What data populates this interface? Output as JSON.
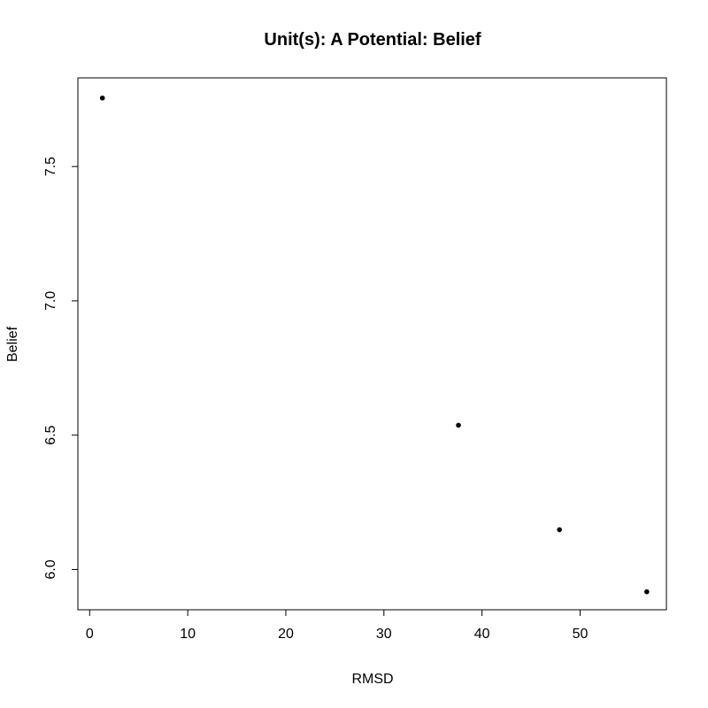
{
  "chart_data": {
    "type": "scatter",
    "title": "Unit(s): A Potential: Belief",
    "xlabel": "RMSD",
    "ylabel": "Belief",
    "xlim": [
      -1.2,
      58.8
    ],
    "ylim": [
      5.85,
      7.83
    ],
    "x_ticks": [
      0,
      10,
      20,
      30,
      40,
      50
    ],
    "y_ticks": [
      6.0,
      6.5,
      7.0,
      7.5
    ],
    "grid": false,
    "legend": "none",
    "series": [
      {
        "x": [
          1.3,
          37.6,
          47.9,
          56.8
        ],
        "y": [
          7.755,
          6.537,
          6.148,
          5.917
        ]
      }
    ]
  }
}
